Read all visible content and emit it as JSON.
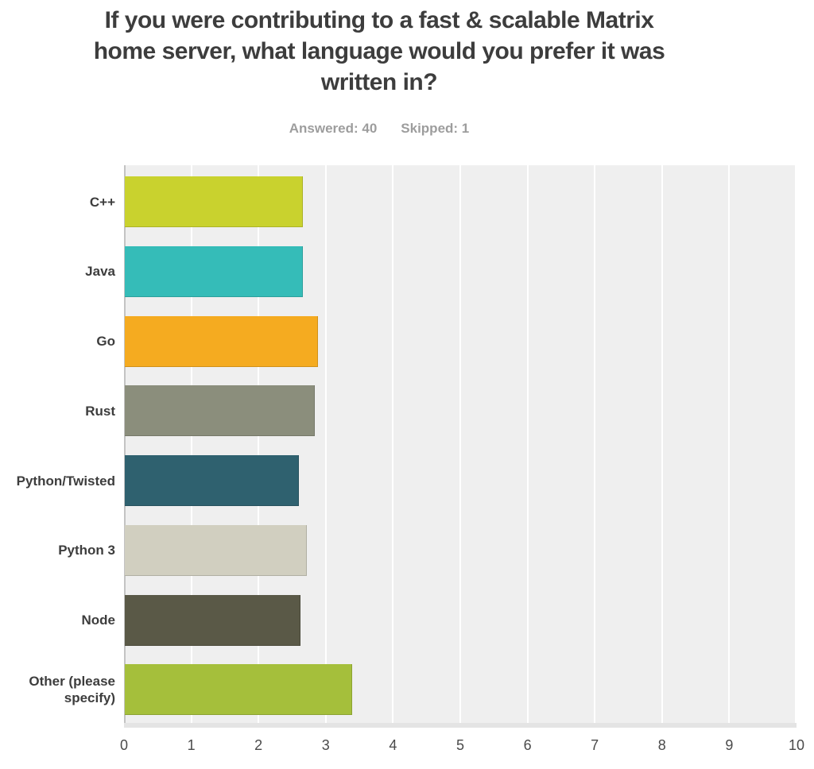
{
  "chart_data": {
    "type": "bar",
    "orientation": "horizontal",
    "title": "If you were contributing to a fast & scalable Matrix home server, what language would you prefer it was written in?",
    "answered_label": "Answered: 40",
    "skipped_label": "Skipped: 1",
    "categories": [
      "C++",
      "Java",
      "Go",
      "Rust",
      "Python/Twisted",
      "Python 3",
      "Node",
      "Other (please specify)"
    ],
    "values": [
      2.65,
      2.65,
      2.87,
      2.82,
      2.59,
      2.71,
      2.61,
      3.38
    ],
    "bar_colors": [
      "#c9d22e",
      "#35bcb8",
      "#f5ab20",
      "#8b8e7c",
      "#2f616f",
      "#d1cfc0",
      "#5a5947",
      "#a5bf3b"
    ],
    "xlabel": "",
    "ylabel": "",
    "xlim": [
      0,
      10
    ],
    "x_ticks": [
      0,
      1,
      2,
      3,
      4,
      5,
      6,
      7,
      8,
      9,
      10
    ],
    "grid": true,
    "legend": false,
    "plot_background": "#efefef",
    "gridline_color": "#ffffff",
    "axis_line_color": "#c3c3c3",
    "bottom_edge_color": "#e4e4e4",
    "title_color": "#3d3d3d",
    "subtitle_color": "#9d9d9d",
    "category_label_color": "#3d3d3d",
    "tick_label_color": "#4a4a4a"
  }
}
